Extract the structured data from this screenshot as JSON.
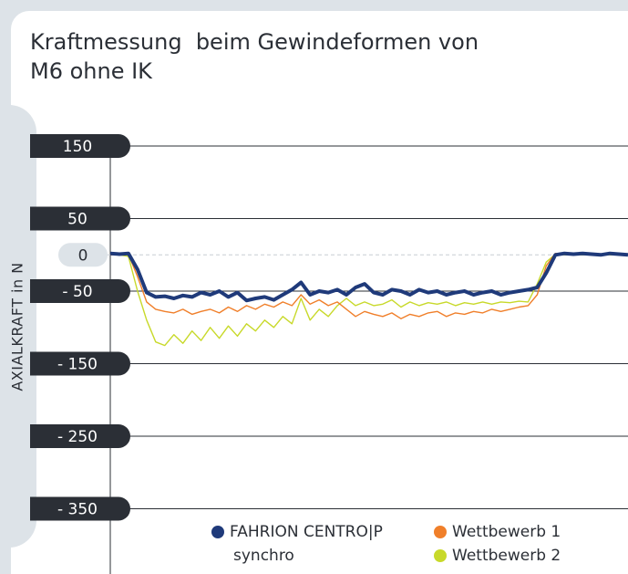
{
  "chart_data": {
    "type": "line",
    "title": "Kraftmessung  beim Gewindeformen von M6 ohne IK",
    "y_label": "AXIALKRAFT in N",
    "ylim": [
      -440,
      335
    ],
    "yticks": [
      150,
      50,
      0,
      {
        "value": -50,
        "label": "- 50"
      },
      {
        "value": -150,
        "label": "- 150"
      },
      {
        "value": -250,
        "label": "- 250"
      },
      {
        "value": -350,
        "label": "- 350"
      }
    ],
    "series": [
      {
        "name": "FAHRION CENTRO|P synchro",
        "color": "#1f3a7a",
        "values": [
          2,
          1,
          2,
          -20,
          -52,
          -58,
          -57,
          -60,
          -56,
          -58,
          -52,
          -55,
          -50,
          -58,
          -52,
          -63,
          -60,
          -58,
          -62,
          -55,
          -48,
          -38,
          -55,
          -50,
          -52,
          -48,
          -55,
          -45,
          -40,
          -52,
          -55,
          -48,
          -50,
          -55,
          -48,
          -52,
          -50,
          -55,
          -52,
          -50,
          -55,
          -52,
          -50,
          -55,
          -52,
          -50,
          -48,
          -45,
          -25,
          0,
          2,
          1,
          2,
          1,
          0,
          2,
          1,
          0
        ]
      },
      {
        "name": "Wettbewerb 1",
        "color": "#f07f2a",
        "values": [
          0,
          0,
          1,
          -30,
          -65,
          -75,
          -78,
          -80,
          -75,
          -82,
          -78,
          -75,
          -80,
          -72,
          -78,
          -70,
          -75,
          -68,
          -72,
          -65,
          -70,
          -55,
          -68,
          -62,
          -70,
          -65,
          -75,
          -85,
          -78,
          -82,
          -85,
          -80,
          -88,
          -82,
          -85,
          -80,
          -78,
          -85,
          -80,
          -82,
          -78,
          -80,
          -75,
          -78,
          -75,
          -72,
          -70,
          -55,
          -15,
          2,
          1,
          1,
          1,
          1,
          1,
          1,
          1,
          1
        ]
      },
      {
        "name": "Wettbewerb 2",
        "color": "#c8d92a",
        "values": [
          0,
          0,
          -2,
          -50,
          -90,
          -120,
          -125,
          -110,
          -122,
          -105,
          -118,
          -100,
          -115,
          -98,
          -112,
          -95,
          -105,
          -90,
          -100,
          -85,
          -95,
          -60,
          -90,
          -75,
          -85,
          -70,
          -60,
          -70,
          -65,
          -70,
          -68,
          -62,
          -72,
          -65,
          -70,
          -66,
          -68,
          -65,
          -70,
          -66,
          -68,
          -65,
          -68,
          -65,
          -66,
          -64,
          -65,
          -40,
          -10,
          1,
          0,
          0,
          0,
          0,
          0,
          0,
          0,
          0
        ]
      }
    ],
    "grid": true
  }
}
